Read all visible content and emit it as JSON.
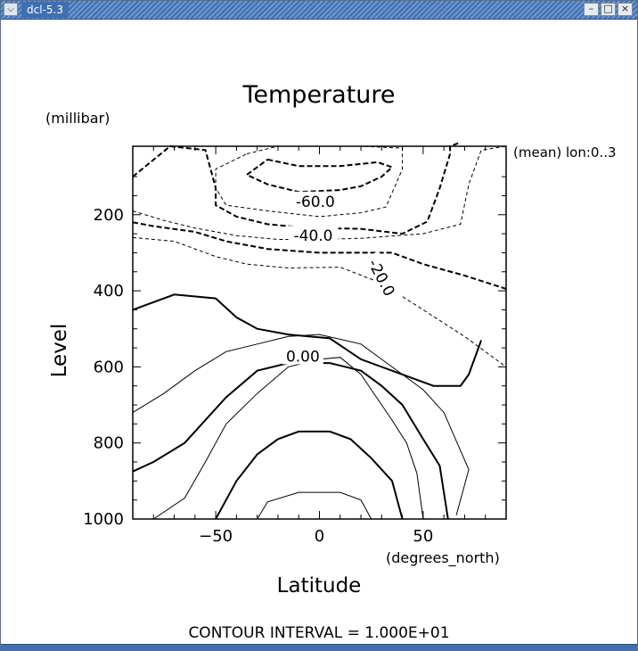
{
  "window": {
    "title": "dcl-5.3",
    "menu_icon": "chevron-down-icon",
    "buttons": [
      "minimize-icon",
      "maximize-icon",
      "close-icon"
    ]
  },
  "chart_data": {
    "type": "contour",
    "title": "Temperature",
    "xlabel": "Latitude",
    "xunits": "(degrees_north)",
    "ylabel": "Level",
    "yunits": "(millibar)",
    "annotation": "(mean) lon:0..3",
    "contour_interval_text": "CONTOUR INTERVAL = 1.000E+01",
    "xlim": [
      -90,
      90
    ],
    "ylim": [
      1000,
      20
    ],
    "y_reversed": true,
    "xticks_labeled": [
      -50,
      0,
      50
    ],
    "yticks_labeled": [
      200,
      400,
      600,
      800,
      1000
    ],
    "contour_labels": [
      "-60.0",
      "-40.0",
      "-20.0",
      "0.00"
    ],
    "contours": [
      {
        "level": -60,
        "closed": true,
        "points": [
          [
            -25,
            55
          ],
          [
            -10,
            72
          ],
          [
            10,
            72
          ],
          [
            28,
            62
          ],
          [
            35,
            75
          ],
          [
            30,
            100
          ],
          [
            20,
            125
          ],
          [
            10,
            135
          ],
          [
            -10,
            140
          ],
          [
            -25,
            120
          ],
          [
            -35,
            95
          ]
        ]
      },
      {
        "level": -50,
        "closed": true,
        "points": [
          [
            -35,
            40
          ],
          [
            -20,
            20
          ],
          [
            20,
            20
          ],
          [
            40,
            25
          ],
          [
            40,
            80
          ],
          [
            32,
            180
          ],
          [
            20,
            195
          ],
          [
            0,
            205
          ],
          [
            -25,
            190
          ],
          [
            -45,
            175
          ],
          [
            -50,
            130
          ],
          [
            -50,
            80
          ]
        ]
      },
      {
        "level": -40,
        "closed": false,
        "points": [
          [
            -90,
            100
          ],
          [
            -72,
            20
          ],
          [
            -55,
            30
          ],
          [
            -50,
            130
          ],
          [
            -50,
            175
          ],
          [
            -40,
            205
          ],
          [
            -25,
            225
          ],
          [
            -5,
            235
          ],
          [
            20,
            237
          ],
          [
            40,
            250
          ],
          [
            52,
            218
          ],
          [
            58,
            130
          ],
          [
            63,
            40
          ],
          [
            63,
            20
          ],
          [
            68,
            10
          ]
        ]
      },
      {
        "level": -30,
        "closed": false,
        "points": [
          [
            -90,
            190
          ],
          [
            -75,
            215
          ],
          [
            -60,
            235
          ],
          [
            -40,
            255
          ],
          [
            -20,
            265
          ],
          [
            0,
            265
          ],
          [
            20,
            262
          ],
          [
            50,
            250
          ],
          [
            68,
            225
          ],
          [
            72,
            120
          ],
          [
            78,
            30
          ],
          [
            90,
            20
          ]
        ]
      },
      {
        "level": -20,
        "closed": false,
        "points": [
          [
            -90,
            220
          ],
          [
            -80,
            230
          ],
          [
            -60,
            245
          ],
          [
            -45,
            270
          ],
          [
            -25,
            290
          ],
          [
            0,
            300
          ],
          [
            20,
            300
          ],
          [
            35,
            300
          ],
          [
            50,
            330
          ],
          [
            70,
            360
          ],
          [
            90,
            395
          ]
        ]
      },
      {
        "level": -10,
        "closed": false,
        "points": [
          [
            -90,
            260
          ],
          [
            -70,
            270
          ],
          [
            -50,
            310
          ],
          [
            -35,
            330
          ],
          [
            -15,
            340
          ],
          [
            10,
            338
          ],
          [
            30,
            380
          ],
          [
            50,
            450
          ],
          [
            70,
            520
          ],
          [
            90,
            600
          ]
        ]
      },
      {
        "level": 0,
        "closed": false,
        "points": [
          [
            -90,
            450
          ],
          [
            -70,
            410
          ],
          [
            -50,
            420
          ],
          [
            -40,
            470
          ],
          [
            -30,
            500
          ],
          [
            -15,
            515
          ],
          [
            5,
            525
          ],
          [
            20,
            580
          ],
          [
            40,
            620
          ],
          [
            55,
            650
          ],
          [
            68,
            650
          ],
          [
            72,
            620
          ],
          [
            78,
            530
          ]
        ]
      },
      {
        "level": 10,
        "closed": false,
        "points": [
          [
            -90,
            720
          ],
          [
            -75,
            670
          ],
          [
            -60,
            610
          ],
          [
            -45,
            560
          ],
          [
            -30,
            540
          ],
          [
            -15,
            520
          ],
          [
            0,
            515
          ],
          [
            20,
            540
          ],
          [
            30,
            580
          ],
          [
            40,
            620
          ],
          [
            50,
            660
          ],
          [
            60,
            720
          ],
          [
            72,
            870
          ],
          [
            66,
            990
          ]
        ]
      },
      {
        "level": 20,
        "closed": false,
        "points": [
          [
            -90,
            875
          ],
          [
            -80,
            850
          ],
          [
            -65,
            800
          ],
          [
            -55,
            740
          ],
          [
            -45,
            680
          ],
          [
            -30,
            610
          ],
          [
            -15,
            590
          ],
          [
            5,
            590
          ],
          [
            20,
            610
          ],
          [
            30,
            650
          ],
          [
            40,
            700
          ],
          [
            50,
            790
          ],
          [
            58,
            860
          ],
          [
            62,
            1000
          ]
        ]
      },
      {
        "level": 30,
        "closed": false,
        "points": [
          [
            -80,
            1000
          ],
          [
            -65,
            945
          ],
          [
            -55,
            850
          ],
          [
            -45,
            750
          ],
          [
            -30,
            670
          ],
          [
            -15,
            600
          ],
          [
            0,
            580
          ],
          [
            10,
            575
          ],
          [
            20,
            620
          ],
          [
            25,
            660
          ],
          [
            35,
            740
          ],
          [
            42,
            800
          ],
          [
            47,
            880
          ],
          [
            50,
            1000
          ]
        ]
      },
      {
        "level": 40,
        "closed": false,
        "points": [
          [
            -50,
            1000
          ],
          [
            -40,
            900
          ],
          [
            -30,
            830
          ],
          [
            -20,
            790
          ],
          [
            -10,
            770
          ],
          [
            5,
            770
          ],
          [
            15,
            790
          ],
          [
            25,
            840
          ],
          [
            35,
            900
          ],
          [
            40,
            1000
          ]
        ]
      },
      {
        "level": 50,
        "closed": false,
        "points": [
          [
            -30,
            1000
          ],
          [
            -25,
            955
          ],
          [
            -10,
            930
          ],
          [
            10,
            930
          ],
          [
            20,
            950
          ],
          [
            25,
            1000
          ]
        ]
      }
    ]
  }
}
